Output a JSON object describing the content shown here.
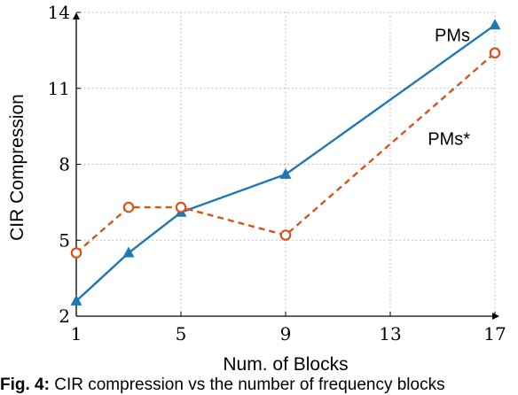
{
  "chart_data": {
    "type": "line",
    "title": "",
    "xlabel": "Num. of Blocks",
    "ylabel": "CIR Compression",
    "xlim": [
      1,
      17
    ],
    "ylim": [
      2,
      14
    ],
    "xticks": [
      1,
      5,
      9,
      13,
      17
    ],
    "yticks": [
      2,
      5,
      8,
      11,
      14
    ],
    "grid": true,
    "series": [
      {
        "name": "PMs",
        "color": "#1f77b4",
        "marker": "triangle",
        "line": "solid",
        "x": [
          1,
          3,
          5,
          9,
          17
        ],
        "y": [
          2.6,
          4.5,
          6.1,
          7.6,
          13.5
        ]
      },
      {
        "name": "PMs*",
        "color": "#d95319",
        "marker": "circle",
        "line": "dashed",
        "x": [
          1,
          3,
          5,
          9,
          17
        ],
        "y": [
          4.5,
          6.3,
          6.3,
          5.2,
          12.4
        ]
      }
    ]
  },
  "caption": {
    "prefix": "Fig. 4:",
    "text": " CIR compression vs the number of frequency blocks"
  }
}
